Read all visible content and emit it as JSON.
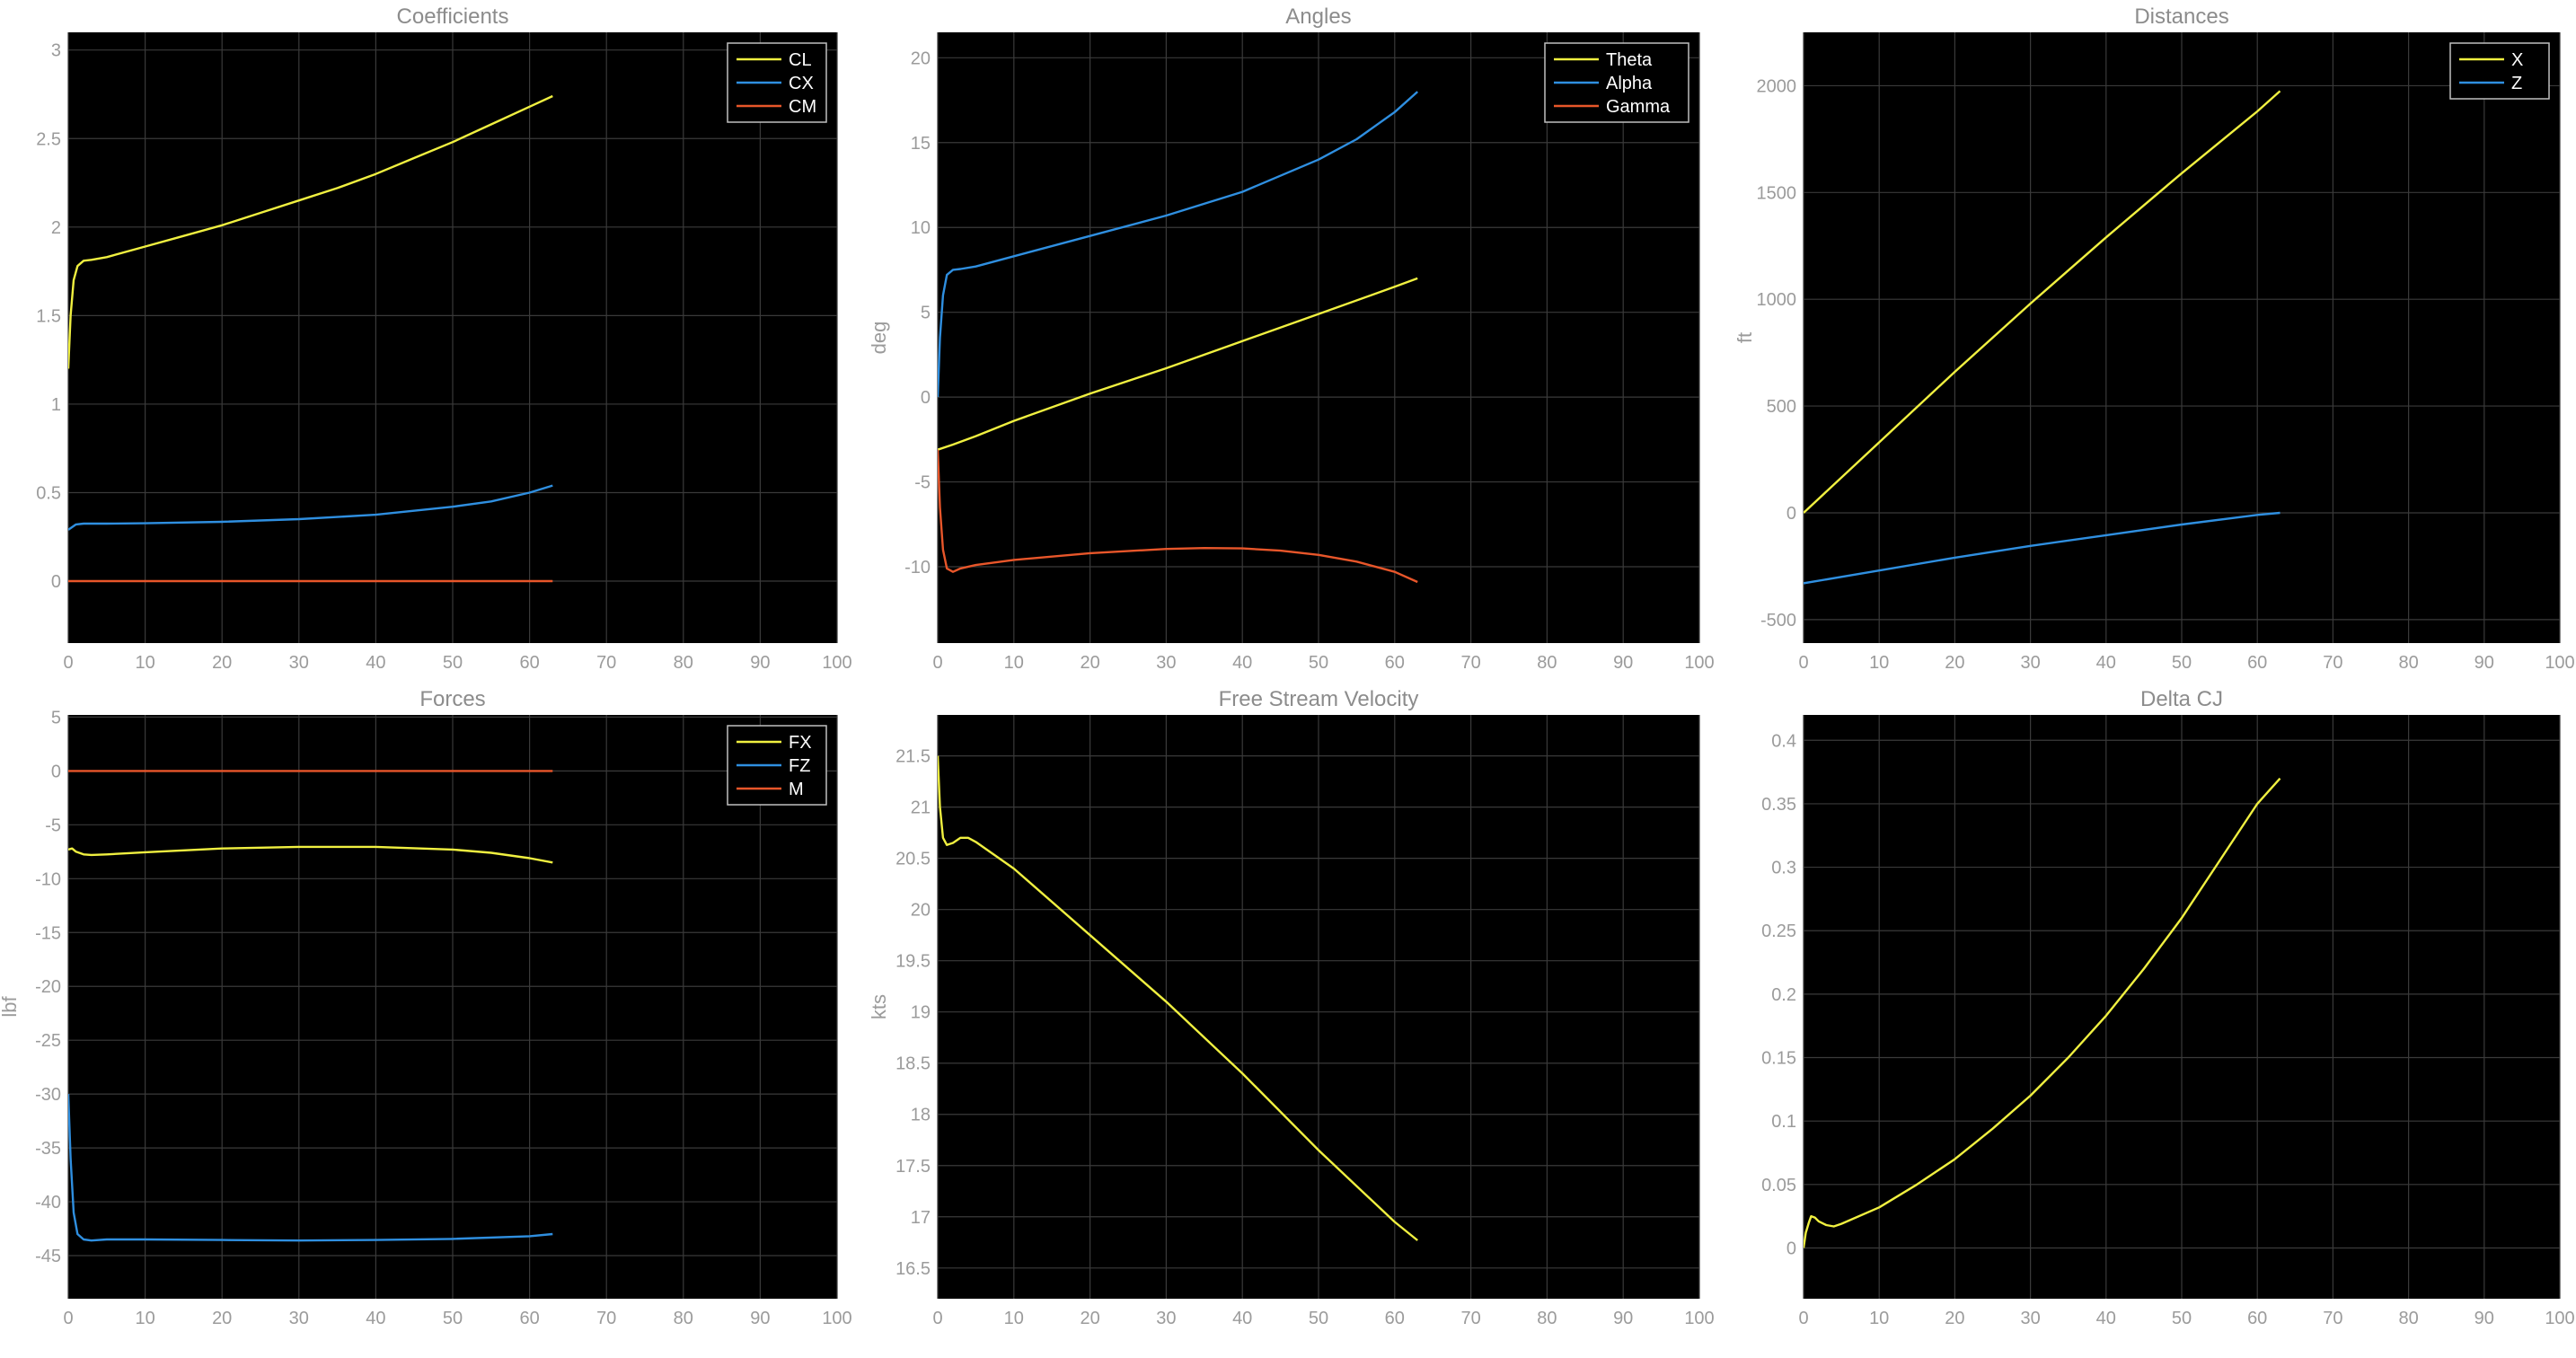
{
  "chart_data": [
    {
      "type": "line",
      "title": "Coefficients",
      "xlabel": "",
      "ylabel": "",
      "xlim": [
        0,
        100
      ],
      "ylim": [
        -0.35,
        3.1
      ],
      "xticks": [
        0,
        10,
        20,
        30,
        40,
        50,
        60,
        70,
        80,
        90,
        100
      ],
      "yticks": [
        0,
        0.5,
        1,
        1.5,
        2,
        2.5,
        3
      ],
      "ytick_labels": [
        "0",
        "0.5",
        "1",
        "1.5",
        "2",
        "2.5",
        "3"
      ],
      "grid": true,
      "legend_position": "top-right",
      "series": [
        {
          "name": "CL",
          "color": "#f0f040",
          "x": [
            0,
            0.3,
            0.7,
            1.2,
            2,
            3,
            5,
            10,
            15,
            20,
            25,
            30,
            35,
            40,
            45,
            50,
            55,
            60,
            63
          ],
          "y": [
            1.2,
            1.5,
            1.7,
            1.78,
            1.81,
            1.815,
            1.83,
            1.89,
            1.95,
            2.01,
            2.08,
            2.15,
            2.22,
            2.3,
            2.39,
            2.48,
            2.58,
            2.68,
            2.74
          ]
        },
        {
          "name": "CX",
          "color": "#2f8fe0",
          "x": [
            0,
            1,
            2,
            5,
            10,
            20,
            30,
            40,
            50,
            55,
            60,
            63
          ],
          "y": [
            0.29,
            0.32,
            0.325,
            0.325,
            0.327,
            0.335,
            0.35,
            0.375,
            0.42,
            0.45,
            0.5,
            0.54
          ]
        },
        {
          "name": "CM",
          "color": "#e8562a",
          "x": [
            0,
            63
          ],
          "y": [
            0,
            0
          ]
        }
      ]
    },
    {
      "type": "line",
      "title": "Angles",
      "xlabel": "",
      "ylabel": "deg",
      "xlim": [
        0,
        100
      ],
      "ylim": [
        -14.5,
        21.5
      ],
      "xticks": [
        0,
        10,
        20,
        30,
        40,
        50,
        60,
        70,
        80,
        90,
        100
      ],
      "yticks": [
        -10,
        -5,
        0,
        5,
        10,
        15,
        20
      ],
      "ytick_labels": [
        "-10",
        "-5",
        "0",
        "5",
        "10",
        "15",
        "20"
      ],
      "grid": true,
      "legend_position": "top-right",
      "series": [
        {
          "name": "Theta",
          "color": "#f0f040",
          "x": [
            0,
            2,
            5,
            10,
            20,
            30,
            40,
            50,
            60,
            63
          ],
          "y": [
            -3.1,
            -2.8,
            -2.3,
            -1.4,
            0.2,
            1.7,
            3.3,
            4.9,
            6.5,
            7.0
          ]
        },
        {
          "name": "Alpha",
          "color": "#2f8fe0",
          "x": [
            0,
            0.3,
            0.7,
            1.2,
            2,
            3,
            5,
            10,
            20,
            30,
            40,
            50,
            55,
            60,
            63
          ],
          "y": [
            0,
            3.5,
            6,
            7.2,
            7.5,
            7.55,
            7.7,
            8.3,
            9.5,
            10.7,
            12.1,
            14.0,
            15.2,
            16.8,
            18.0
          ]
        },
        {
          "name": "Gamma",
          "color": "#e8562a",
          "x": [
            0,
            0.3,
            0.7,
            1.2,
            2,
            3,
            5,
            10,
            20,
            30,
            35,
            40,
            45,
            50,
            55,
            60,
            63
          ],
          "y": [
            -3.1,
            -6.5,
            -9,
            -10.1,
            -10.3,
            -10.1,
            -9.9,
            -9.6,
            -9.2,
            -8.95,
            -8.9,
            -8.92,
            -9.05,
            -9.3,
            -9.7,
            -10.3,
            -10.9
          ]
        }
      ]
    },
    {
      "type": "line",
      "title": "Distances",
      "xlabel": "",
      "ylabel": "ft",
      "xlim": [
        0,
        100
      ],
      "ylim": [
        -610,
        2250
      ],
      "xticks": [
        0,
        10,
        20,
        30,
        40,
        50,
        60,
        70,
        80,
        90,
        100
      ],
      "yticks": [
        -500,
        0,
        500,
        1000,
        1500,
        2000
      ],
      "ytick_labels": [
        "-500",
        "0",
        "500",
        "1000",
        "1500",
        "2000"
      ],
      "grid": true,
      "legend_position": "top-right",
      "series": [
        {
          "name": "X",
          "color": "#f0f040",
          "x": [
            0,
            10,
            20,
            30,
            40,
            50,
            60,
            63
          ],
          "y": [
            0,
            330,
            660,
            980,
            1290,
            1590,
            1880,
            1975
          ]
        },
        {
          "name": "Z",
          "color": "#2f8fe0",
          "x": [
            0,
            10,
            20,
            30,
            40,
            50,
            60,
            63
          ],
          "y": [
            -330,
            -270,
            -210,
            -155,
            -105,
            -55,
            -10,
            0
          ]
        }
      ]
    },
    {
      "type": "line",
      "title": "Forces",
      "xlabel": "",
      "ylabel": "lbf",
      "xlim": [
        0,
        100
      ],
      "ylim": [
        -49,
        5.2
      ],
      "xticks": [
        0,
        10,
        20,
        30,
        40,
        50,
        60,
        70,
        80,
        90,
        100
      ],
      "yticks": [
        -45,
        -40,
        -35,
        -30,
        -25,
        -20,
        -15,
        -10,
        -5,
        0,
        5
      ],
      "ytick_labels": [
        "-45",
        "-40",
        "-35",
        "-30",
        "-25",
        "-20",
        "-15",
        "-10",
        "-5",
        "0",
        "5"
      ],
      "grid": true,
      "legend_position": "top-right",
      "series": [
        {
          "name": "FX",
          "color": "#f0f040",
          "x": [
            0,
            0.5,
            1,
            2,
            3,
            5,
            10,
            20,
            30,
            40,
            50,
            55,
            60,
            63
          ],
          "y": [
            -7.3,
            -7.2,
            -7.5,
            -7.75,
            -7.8,
            -7.75,
            -7.55,
            -7.2,
            -7.05,
            -7.05,
            -7.3,
            -7.6,
            -8.1,
            -8.5
          ]
        },
        {
          "name": "FZ",
          "color": "#2f8fe0",
          "x": [
            0,
            0.3,
            0.7,
            1.2,
            2,
            3,
            5,
            10,
            20,
            30,
            40,
            50,
            60,
            63
          ],
          "y": [
            -30,
            -36,
            -41,
            -43,
            -43.5,
            -43.6,
            -43.5,
            -43.5,
            -43.55,
            -43.6,
            -43.55,
            -43.45,
            -43.2,
            -43.0
          ]
        },
        {
          "name": "M",
          "color": "#e8562a",
          "x": [
            0,
            63
          ],
          "y": [
            0,
            0
          ]
        }
      ]
    },
    {
      "type": "line",
      "title": "Free Stream Velocity",
      "xlabel": "",
      "ylabel": "kts",
      "xlim": [
        0,
        100
      ],
      "ylim": [
        16.2,
        21.9
      ],
      "xticks": [
        0,
        10,
        20,
        30,
        40,
        50,
        60,
        70,
        80,
        90,
        100
      ],
      "yticks": [
        16.5,
        17,
        17.5,
        18,
        18.5,
        19,
        19.5,
        20,
        20.5,
        21,
        21.5
      ],
      "ytick_labels": [
        "16.5",
        "17",
        "17.5",
        "18",
        "18.5",
        "19",
        "19.5",
        "20",
        "20.5",
        "21",
        "21.5"
      ],
      "grid": true,
      "legend_position": "none",
      "series": [
        {
          "name": "",
          "color": "#f0f040",
          "x": [
            0,
            0.3,
            0.7,
            1.2,
            2,
            3,
            4,
            5,
            10,
            20,
            30,
            40,
            50,
            55,
            60,
            63
          ],
          "y": [
            21.5,
            21.0,
            20.7,
            20.63,
            20.65,
            20.7,
            20.7,
            20.66,
            20.4,
            19.75,
            19.1,
            18.4,
            17.65,
            17.3,
            16.95,
            16.77
          ]
        }
      ]
    },
    {
      "type": "line",
      "title": "Delta CJ",
      "xlabel": "",
      "ylabel": "",
      "xlim": [
        0,
        100
      ],
      "ylim": [
        -0.04,
        0.42
      ],
      "xticks": [
        0,
        10,
        20,
        30,
        40,
        50,
        60,
        70,
        80,
        90,
        100
      ],
      "yticks": [
        0,
        0.05,
        0.1,
        0.15,
        0.2,
        0.25,
        0.3,
        0.35,
        0.4
      ],
      "ytick_labels": [
        "0",
        "0.05",
        "0.1",
        "0.15",
        "0.2",
        "0.25",
        "0.3",
        "0.35",
        "0.4"
      ],
      "grid": true,
      "legend_position": "none",
      "series": [
        {
          "name": "",
          "color": "#f0f040",
          "x": [
            0,
            0.3,
            0.7,
            1,
            1.5,
            2,
            3,
            4,
            5,
            10,
            15,
            20,
            25,
            30,
            35,
            40,
            45,
            50,
            55,
            60,
            63
          ],
          "y": [
            0,
            0.012,
            0.02,
            0.025,
            0.024,
            0.021,
            0.018,
            0.017,
            0.019,
            0.032,
            0.05,
            0.07,
            0.094,
            0.12,
            0.15,
            0.183,
            0.22,
            0.26,
            0.305,
            0.35,
            0.37
          ]
        }
      ]
    }
  ]
}
